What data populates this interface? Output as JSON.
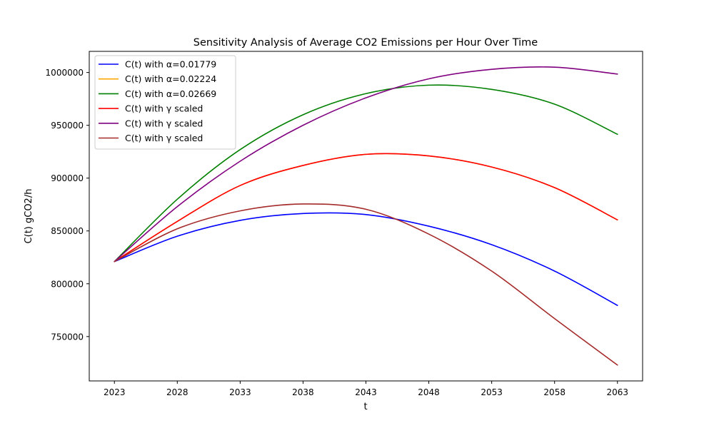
{
  "chart_data": {
    "type": "line",
    "title": "Sensitivity Analysis of Average CO2 Emissions per Hour Over Time",
    "xlabel": "t",
    "ylabel": "C(t) gCO2/h",
    "xlim": [
      2021,
      2065
    ],
    "ylim": [
      708000,
      1020000
    ],
    "xticks": [
      2023,
      2028,
      2033,
      2038,
      2043,
      2048,
      2053,
      2058,
      2063
    ],
    "yticks": [
      750000,
      800000,
      850000,
      900000,
      950000,
      1000000
    ],
    "grid": false,
    "legend_position": "top-left",
    "x": [
      2023,
      2028,
      2033,
      2038,
      2043,
      2048,
      2053,
      2058,
      2063
    ],
    "series": [
      {
        "name": "C(t) with α=0.01779",
        "color": "#0000ff",
        "values": [
          821000,
          845000,
          860000,
          866500,
          865500,
          854500,
          837000,
          812000,
          779500
        ]
      },
      {
        "name": "C(t) with α=0.02224",
        "color": "#ffa500",
        "values": [
          821000,
          859000,
          893000,
          912000,
          922500,
          921000,
          910500,
          891000,
          860500
        ]
      },
      {
        "name": "C(t) with α=0.02669",
        "color": "#008000",
        "values": [
          821000,
          880000,
          927000,
          960000,
          980000,
          988000,
          984000,
          970000,
          941500
        ]
      },
      {
        "name": "C(t) with γ scaled",
        "color": "#ff0000",
        "values": [
          821000,
          859000,
          893000,
          912000,
          922500,
          921000,
          910500,
          891000,
          860500
        ]
      },
      {
        "name": "C(t) with γ scaled",
        "color": "#800080",
        "values": [
          821000,
          873000,
          916000,
          950000,
          976000,
          994000,
          1003000,
          1005000,
          998500
        ]
      },
      {
        "name": "C(t) with γ scaled",
        "color": "#a52a2a",
        "values": [
          821000,
          852000,
          869000,
          875500,
          870500,
          847000,
          812000,
          767000,
          723000
        ]
      }
    ]
  }
}
